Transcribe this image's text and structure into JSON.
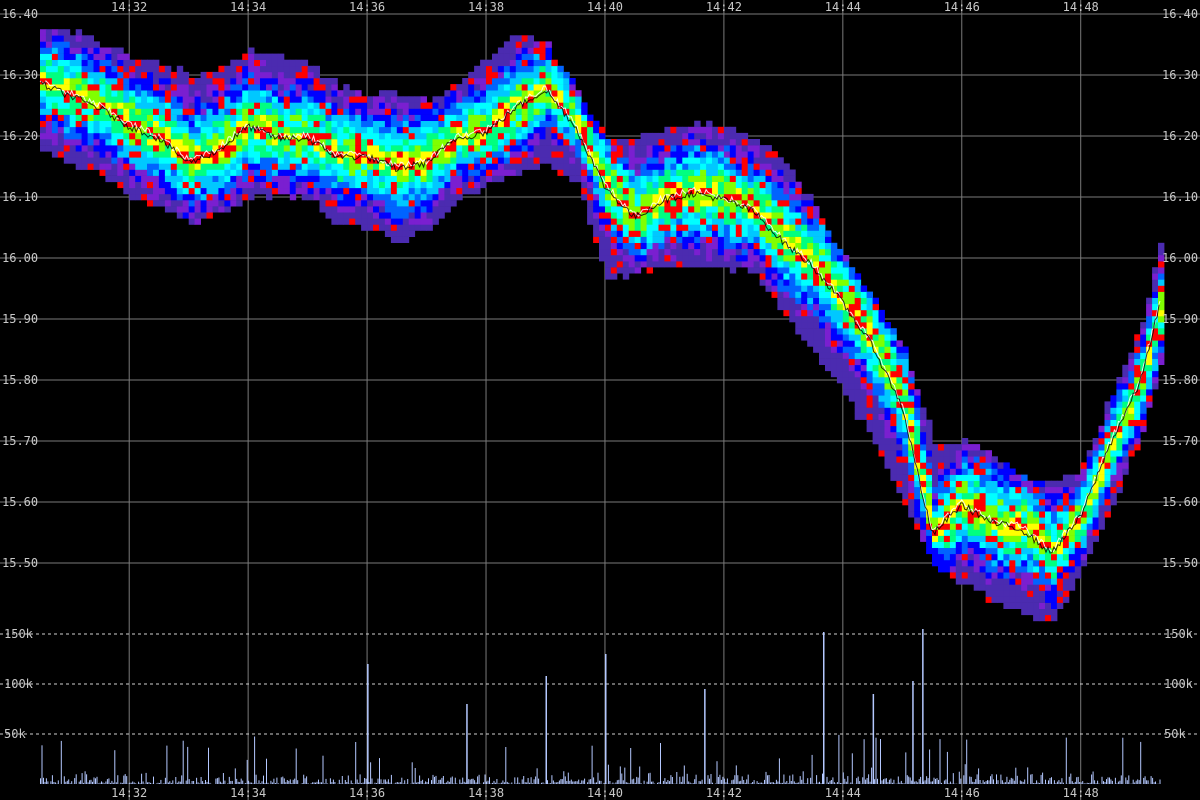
{
  "chart_data": {
    "type": "heatmap",
    "price_axis": {
      "ylim": [
        15.4,
        16.4
      ],
      "ticks": [
        "16.40",
        "16.30",
        "16.20",
        "16.10",
        "16.00",
        "15.90",
        "15.80",
        "15.70",
        "15.60",
        "15.50"
      ],
      "tick_values": [
        16.4,
        16.3,
        16.2,
        16.1,
        16.0,
        15.9,
        15.8,
        15.7,
        15.6,
        15.5
      ]
    },
    "time_axis": {
      "range": [
        "14:30:30",
        "14:49:20"
      ],
      "ticks": [
        "14:32",
        "14:34",
        "14:36",
        "14:38",
        "14:40",
        "14:42",
        "14:44",
        "14:46",
        "14:48"
      ]
    },
    "volume_axis": {
      "ylim": [
        0,
        168000
      ],
      "ticks": [
        "150k",
        "100k",
        "50k"
      ],
      "tick_values": [
        150000,
        100000,
        50000
      ]
    },
    "last_price_line": {
      "times": [
        "14:30:30",
        "14:31:00",
        "14:31:30",
        "14:32:00",
        "14:32:30",
        "14:33:00",
        "14:33:30",
        "14:34:00",
        "14:34:30",
        "14:35:00",
        "14:35:30",
        "14:36:00",
        "14:36:30",
        "14:37:00",
        "14:37:30",
        "14:38:00",
        "14:38:30",
        "14:39:00",
        "14:39:30",
        "14:40:00",
        "14:40:30",
        "14:41:00",
        "14:41:30",
        "14:42:00",
        "14:42:30",
        "14:43:00",
        "14:43:30",
        "14:44:00",
        "14:44:30",
        "14:45:00",
        "14:45:30",
        "14:46:00",
        "14:46:30",
        "14:47:00",
        "14:47:30",
        "14:48:00",
        "14:48:30",
        "14:49:00",
        "14:49:20"
      ],
      "prices": [
        16.29,
        16.27,
        16.25,
        16.22,
        16.2,
        16.16,
        16.18,
        16.22,
        16.2,
        16.2,
        16.17,
        16.17,
        16.15,
        16.16,
        16.2,
        16.21,
        16.25,
        16.28,
        16.22,
        16.12,
        16.07,
        16.1,
        16.11,
        16.1,
        16.08,
        16.03,
        15.99,
        15.93,
        15.86,
        15.76,
        15.55,
        15.6,
        15.57,
        15.56,
        15.52,
        15.58,
        15.7,
        15.8,
        15.93
      ]
    },
    "depth_band": {
      "times": [
        "14:30:30",
        "14:31:00",
        "14:31:30",
        "14:32:00",
        "14:32:30",
        "14:33:00",
        "14:33:30",
        "14:34:00",
        "14:34:30",
        "14:35:00",
        "14:35:30",
        "14:36:00",
        "14:36:30",
        "14:37:00",
        "14:37:30",
        "14:38:00",
        "14:38:30",
        "14:39:00",
        "14:39:30",
        "14:40:00",
        "14:40:30",
        "14:41:00",
        "14:41:30",
        "14:42:00",
        "14:42:30",
        "14:43:00",
        "14:43:30",
        "14:44:00",
        "14:44:30",
        "14:45:00",
        "14:45:30",
        "14:46:00",
        "14:46:30",
        "14:47:00",
        "14:47:30",
        "14:48:00",
        "14:48:30",
        "14:49:00",
        "14:49:20"
      ],
      "high": [
        16.38,
        16.37,
        16.35,
        16.33,
        16.32,
        16.3,
        16.31,
        16.34,
        16.33,
        16.32,
        16.28,
        16.27,
        16.27,
        16.26,
        16.29,
        16.33,
        16.37,
        16.35,
        16.27,
        16.2,
        16.2,
        16.21,
        16.22,
        16.21,
        16.2,
        16.16,
        16.08,
        16.0,
        15.93,
        15.85,
        15.7,
        15.7,
        15.68,
        15.64,
        15.63,
        15.66,
        15.78,
        15.9,
        16.04
      ],
      "low": [
        16.18,
        16.16,
        16.14,
        16.1,
        16.09,
        16.06,
        16.08,
        16.1,
        16.11,
        16.1,
        16.06,
        16.05,
        16.03,
        16.05,
        16.1,
        16.13,
        16.14,
        16.16,
        16.13,
        15.97,
        15.98,
        15.99,
        15.99,
        15.99,
        15.98,
        15.91,
        15.85,
        15.78,
        15.7,
        15.6,
        15.5,
        15.47,
        15.44,
        15.42,
        15.41,
        15.5,
        15.6,
        15.72,
        15.84
      ]
    },
    "volume": {
      "tallest_spikes": [
        {
          "time": "14:40:00",
          "value": 130000
        },
        {
          "time": "14:45:20",
          "value": 155000
        },
        {
          "time": "14:43:40",
          "value": 152000
        },
        {
          "time": "14:36:00",
          "value": 120000
        },
        {
          "time": "14:39:00",
          "value": 108000
        },
        {
          "time": "14:45:10",
          "value": 103000
        },
        {
          "time": "14:44:30",
          "value": 90000
        },
        {
          "time": "14:41:40",
          "value": 95000
        },
        {
          "time": "14:37:40",
          "value": 80000
        }
      ]
    },
    "heat_colors": [
      "#2a2a2a",
      "#4b2bb0",
      "#7a1fd0",
      "#0000ff",
      "#0064ff",
      "#00c8ff",
      "#00ffff",
      "#00ff80",
      "#80ff00",
      "#ffff00",
      "#ff0000"
    ],
    "volume_color": "#b4c8ff",
    "price_line_color": "#ffffff",
    "grid_color": "#7a7a7a",
    "grid": true
  }
}
